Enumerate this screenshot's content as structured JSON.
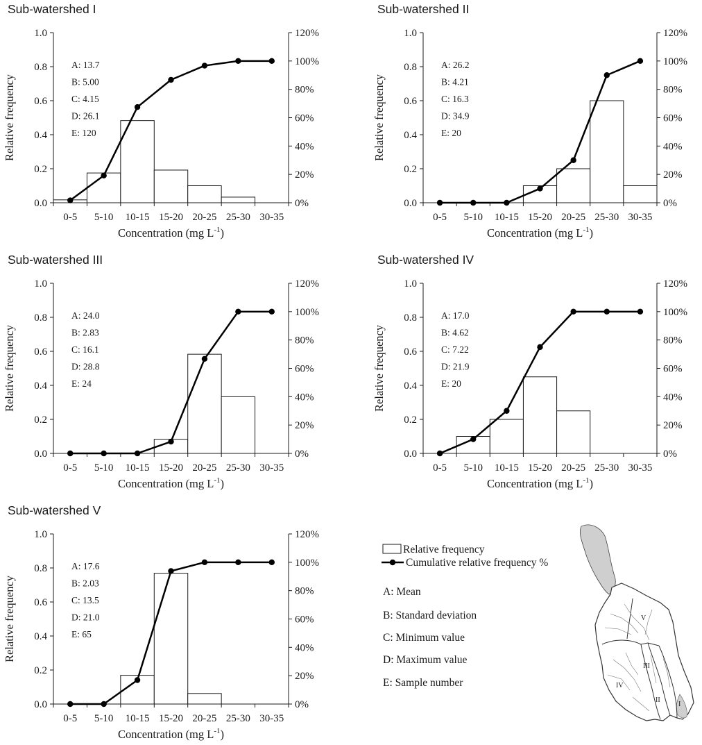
{
  "figure": {
    "xlabel": "Concentration (mg L",
    "xlabel_sup": "-1",
    "xlabel_close": ")",
    "ylabel": "Relative frequency"
  },
  "legend": {
    "bar_label": "Relative frequency",
    "line_label": "Cumulative relative frequency %",
    "stat_keys": [
      {
        "key": "A: Mean"
      },
      {
        "key": "B: Standard deviation"
      },
      {
        "key": "C: Minimum value"
      },
      {
        "key": "D: Maximum value"
      },
      {
        "key": "E: Sample number"
      }
    ]
  },
  "map": {
    "labels": [
      "V",
      "III",
      "IV",
      "II",
      "I"
    ],
    "colors": {
      "lake": "#cfcfcf",
      "outline": "#333333",
      "streams": "#777777"
    }
  },
  "colors": {
    "axis": "#1a1a1a",
    "bar_fill": "#ffffff",
    "bar_stroke": "#1a1a1a",
    "line": "#000000",
    "marker": "#000000"
  },
  "chart_data": [
    {
      "type": "bar",
      "title": "Sub-watershed I",
      "categories": [
        "0-5",
        "5-10",
        "10-15",
        "15-20",
        "20-25",
        "25-30",
        "30-35"
      ],
      "ylim": [
        0,
        1.0
      ],
      "yticks": [
        "0.0",
        "0.2",
        "0.4",
        "0.6",
        "0.8",
        "1.0"
      ],
      "y2lim": [
        0,
        120
      ],
      "y2ticks": [
        "0%",
        "20%",
        "40%",
        "60%",
        "80%",
        "100%",
        "120%"
      ],
      "series": [
        {
          "name": "Relative frequency",
          "type": "bar",
          "values": [
            0.017,
            0.175,
            0.483,
            0.192,
            0.1,
            0.033,
            0.0
          ]
        },
        {
          "name": "Cumulative relative frequency %",
          "type": "line",
          "axis": "right",
          "values": [
            1.7,
            19.2,
            67.5,
            86.7,
            96.7,
            100,
            100
          ]
        }
      ],
      "stats": [
        "A: 13.7",
        "B: 5.00",
        "C: 4.15",
        "D: 26.1",
        "E: 120"
      ]
    },
    {
      "type": "bar",
      "title": "Sub-watershed II",
      "categories": [
        "0-5",
        "5-10",
        "10-15",
        "15-20",
        "20-25",
        "25-30",
        "30-35"
      ],
      "ylim": [
        0,
        1.0
      ],
      "yticks": [
        "0.0",
        "0.2",
        "0.4",
        "0.6",
        "0.8",
        "1.0"
      ],
      "y2lim": [
        0,
        120
      ],
      "y2ticks": [
        "0%",
        "20%",
        "40%",
        "60%",
        "80%",
        "100%",
        "120%"
      ],
      "series": [
        {
          "name": "Relative frequency",
          "type": "bar",
          "values": [
            0,
            0,
            0,
            0.1,
            0.2,
            0.6,
            0.1
          ]
        },
        {
          "name": "Cumulative relative frequency %",
          "type": "line",
          "axis": "right",
          "values": [
            0,
            0,
            0,
            10,
            30,
            90,
            100
          ]
        }
      ],
      "stats": [
        "A: 26.2",
        "B: 4.21",
        "C: 16.3",
        "D: 34.9",
        "E: 20"
      ]
    },
    {
      "type": "bar",
      "title": "Sub-watershed III",
      "categories": [
        "0-5",
        "5-10",
        "10-15",
        "15-20",
        "20-25",
        "25-30",
        "30-35"
      ],
      "ylim": [
        0,
        1.0
      ],
      "yticks": [
        "0.0",
        "0.2",
        "0.4",
        "0.6",
        "0.8",
        "1.0"
      ],
      "y2lim": [
        0,
        120
      ],
      "y2ticks": [
        "0%",
        "20%",
        "40%",
        "60%",
        "80%",
        "100%",
        "120%"
      ],
      "series": [
        {
          "name": "Relative frequency",
          "type": "bar",
          "values": [
            0,
            0,
            0,
            0.083,
            0.583,
            0.333,
            0
          ]
        },
        {
          "name": "Cumulative relative frequency %",
          "type": "line",
          "axis": "right",
          "values": [
            0,
            0,
            0,
            8.3,
            66.7,
            100,
            100
          ]
        }
      ],
      "stats": [
        "A: 24.0",
        "B: 2.83",
        "C: 16.1",
        "D: 28.8",
        "E: 24"
      ]
    },
    {
      "type": "bar",
      "title": "Sub-watershed IV",
      "categories": [
        "0-5",
        "5-10",
        "10-15",
        "15-20",
        "20-25",
        "25-30",
        "30-35"
      ],
      "ylim": [
        0,
        1.0
      ],
      "yticks": [
        "0.0",
        "0.2",
        "0.4",
        "0.6",
        "0.8",
        "1.0"
      ],
      "y2lim": [
        0,
        120
      ],
      "y2ticks": [
        "0%",
        "20%",
        "40%",
        "60%",
        "80%",
        "100%",
        "120%"
      ],
      "series": [
        {
          "name": "Relative frequency",
          "type": "bar",
          "values": [
            0,
            0.1,
            0.2,
            0.45,
            0.25,
            0,
            0
          ]
        },
        {
          "name": "Cumulative relative frequency %",
          "type": "line",
          "axis": "right",
          "values": [
            0,
            10,
            30,
            75,
            100,
            100,
            100
          ]
        }
      ],
      "stats": [
        "A: 17.0",
        "B: 4.62",
        "C: 7.22",
        "D: 21.9",
        "E: 20"
      ]
    },
    {
      "type": "bar",
      "title": "Sub-watershed V",
      "categories": [
        "0-5",
        "5-10",
        "10-15",
        "15-20",
        "20-25",
        "25-30",
        "30-35"
      ],
      "ylim": [
        0,
        1.0
      ],
      "yticks": [
        "0.0",
        "0.2",
        "0.4",
        "0.6",
        "0.8",
        "1.0"
      ],
      "y2lim": [
        0,
        120
      ],
      "y2ticks": [
        "0%",
        "20%",
        "40%",
        "60%",
        "80%",
        "100%",
        "120%"
      ],
      "series": [
        {
          "name": "Relative frequency",
          "type": "bar",
          "values": [
            0,
            0,
            0.169,
            0.769,
            0.062,
            0,
            0
          ]
        },
        {
          "name": "Cumulative relative frequency %",
          "type": "line",
          "axis": "right",
          "values": [
            0,
            0,
            16.9,
            93.8,
            100,
            100,
            100
          ]
        }
      ],
      "stats": [
        "A: 17.6",
        "B: 2.03",
        "C: 13.5",
        "D: 21.0",
        "E: 65"
      ]
    }
  ]
}
